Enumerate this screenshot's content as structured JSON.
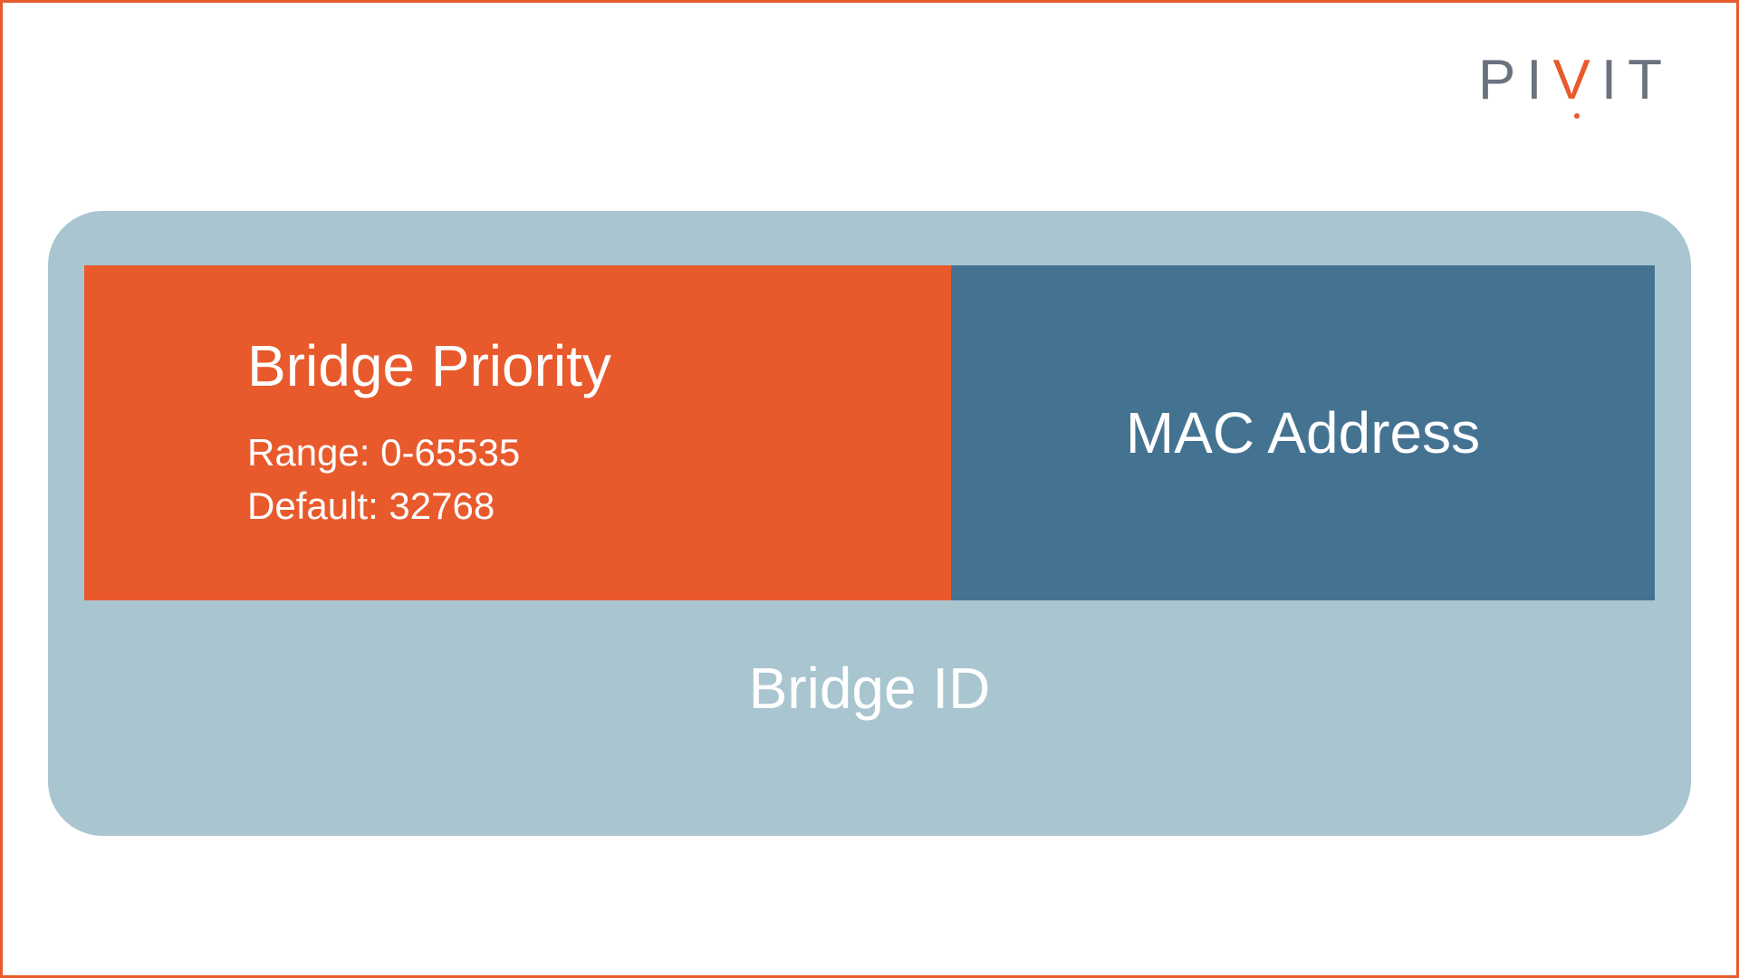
{
  "logo": {
    "text_part1": "PI",
    "text_accent": "V",
    "text_part2": "IT",
    "color_main": "#6b7280",
    "color_accent": "#e85a2c"
  },
  "diagram": {
    "type": "infographic",
    "outer_container": {
      "background_color": "#a8c5d0",
      "border_radius": 60,
      "label": "Bridge ID",
      "label_color": "#ffffff",
      "label_fontsize": 64
    },
    "left_box": {
      "background_color": "#e85a2c",
      "title": "Bridge Priority",
      "title_color": "#ffffff",
      "title_fontsize": 64,
      "detail_line1": "Range: 0-65535",
      "detail_line2": "Default: 32768",
      "detail_color": "#ffffff",
      "detail_fontsize": 42
    },
    "right_box": {
      "background_color": "#447392",
      "title": "MAC Address",
      "title_color": "#ffffff",
      "title_fontsize": 64
    }
  },
  "frame": {
    "border_color": "#e85a2c",
    "border_width": 3,
    "background_color": "#ffffff"
  }
}
